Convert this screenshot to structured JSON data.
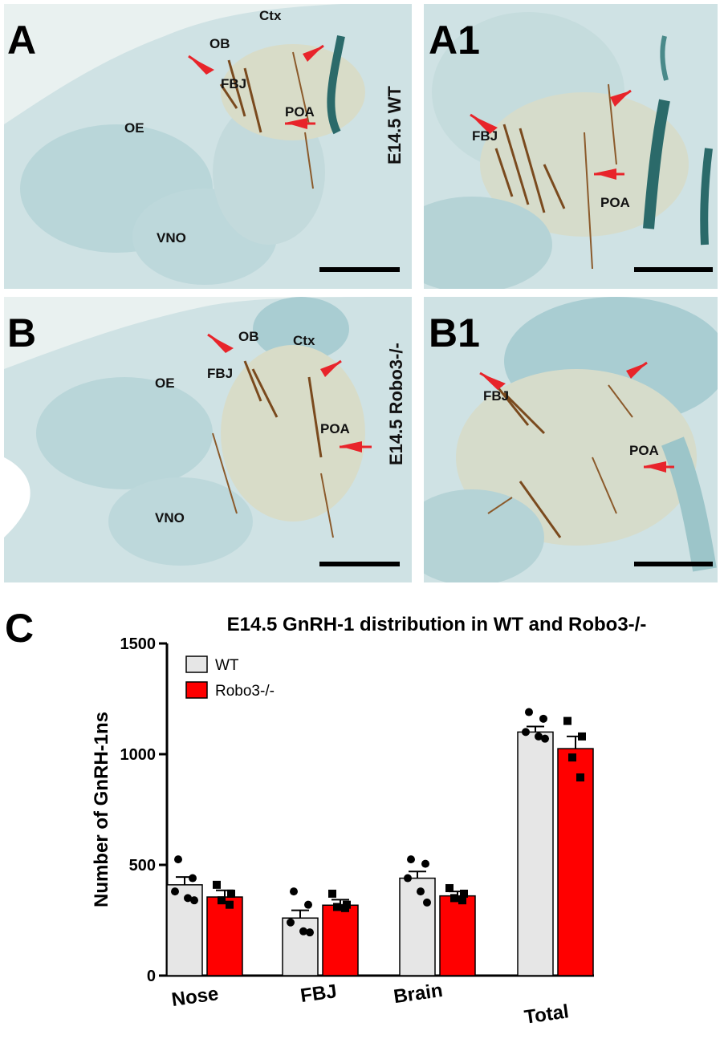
{
  "figure": {
    "panels": [
      {
        "id": "A",
        "labels": [
          "Ctx",
          "OB",
          "FBJ",
          "OE",
          "POA",
          "VNO"
        ],
        "condition": "E14.5 WT"
      },
      {
        "id": "A1",
        "labels": [
          "FBJ",
          "POA"
        ]
      },
      {
        "id": "B",
        "labels": [
          "OB",
          "Ctx",
          "FBJ",
          "OE",
          "POA",
          "VNO"
        ],
        "condition": "E14.5  Robo3-/-"
      },
      {
        "id": "B1",
        "labels": [
          "FBJ",
          "POA"
        ]
      }
    ],
    "colors": {
      "tissue": "#cfe2e4",
      "stain": "#7a4a1e",
      "arrow": "#e8242a",
      "wt_bar": "#e6e6e6",
      "ko_bar": "#ff0000"
    }
  },
  "chart_panel_label": "C",
  "chart_data": {
    "type": "bar",
    "title": "E14.5 GnRH-1 distribution in WT and Robo3-/-",
    "ylabel": "Number of GnRH-1ns",
    "xlabel": "",
    "categories": [
      "Nose",
      "FBJ",
      "Brain",
      "Total"
    ],
    "ylim": [
      0,
      1500
    ],
    "yticks": [
      0,
      500,
      1000,
      1500
    ],
    "legend_position": "top-left",
    "series": [
      {
        "name": "WT",
        "color": "#e6e6e6",
        "values": [
          410,
          260,
          440,
          1100
        ],
        "sem": [
          35,
          35,
          30,
          25
        ],
        "points": [
          [
            525,
            440,
            380,
            350,
            340
          ],
          [
            380,
            320,
            240,
            200,
            195
          ],
          [
            525,
            505,
            440,
            380,
            330
          ],
          [
            1190,
            1160,
            1100,
            1080,
            1070
          ]
        ]
      },
      {
        "name": "Robo3-/-",
        "color": "#ff0000",
        "values": [
          355,
          318,
          360,
          1025
        ],
        "sem": [
          30,
          25,
          20,
          55
        ],
        "points": [
          [
            410,
            370,
            340,
            320
          ],
          [
            370,
            320,
            310,
            305
          ],
          [
            395,
            370,
            350,
            340
          ],
          [
            1150,
            1080,
            985,
            895
          ]
        ]
      }
    ]
  }
}
